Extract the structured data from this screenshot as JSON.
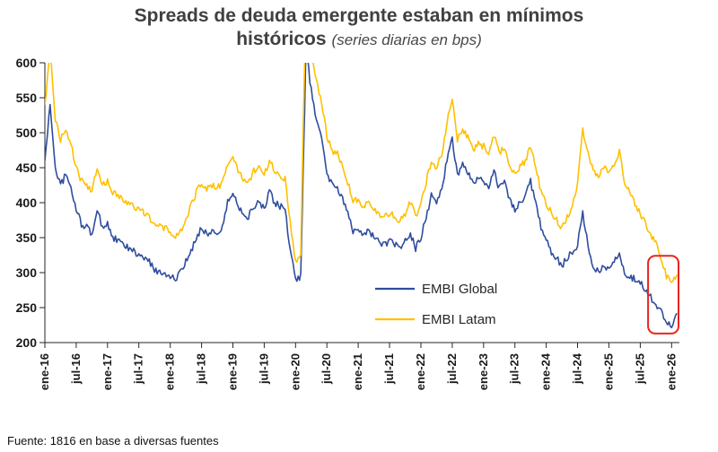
{
  "title": {
    "line1": "Spreads de deuda emergente estaban en mínimos",
    "line2_bold": "históricos",
    "line2_italic": "(series diarias en bps)"
  },
  "footer": {
    "source": "Fuente: 1816  en base a diversas fuentes"
  },
  "chart_data": {
    "type": "line",
    "title": "Spreads de deuda emergente estaban en mínimos históricos",
    "subtitle": "(series diarias en bps)",
    "xlabel": "",
    "ylabel": "",
    "unit": "bps",
    "grid": false,
    "legend_position": "inside-bottom-right",
    "ylim": [
      200,
      600
    ],
    "y_ticks": [
      200,
      250,
      300,
      350,
      400,
      450,
      500,
      550,
      600
    ],
    "x_tick_labels": [
      "ene-16",
      "jul-16",
      "ene-17",
      "jul-17",
      "ene-18",
      "jul-18",
      "ene-19",
      "jul-19",
      "ene-20",
      "jul-20",
      "ene-21",
      "jul-21",
      "ene-22",
      "jul-22",
      "ene-23",
      "jul-23",
      "ene-24",
      "jul-24",
      "ene-25",
      "jul-25",
      "ene-26"
    ],
    "x_tick_months": [
      0,
      6,
      12,
      18,
      24,
      30,
      36,
      42,
      48,
      54,
      60,
      66,
      72,
      78,
      84,
      90,
      96,
      102,
      108,
      114,
      120
    ],
    "x_note": "monthly approximations of daily series, index 0 = ene-16",
    "series": [
      {
        "name": "EMBI Global",
        "color": "#2f4d9e",
        "values": [
          460,
          540,
          450,
          425,
          440,
          420,
          390,
          370,
          365,
          355,
          390,
          365,
          370,
          350,
          345,
          340,
          335,
          330,
          325,
          320,
          315,
          305,
          300,
          300,
          295,
          290,
          300,
          315,
          330,
          350,
          365,
          355,
          360,
          355,
          365,
          400,
          415,
          395,
          385,
          380,
          395,
          400,
          390,
          415,
          400,
          395,
          390,
          330,
          290,
          295,
          620,
          560,
          520,
          490,
          445,
          425,
          420,
          405,
          385,
          360,
          365,
          355,
          360,
          350,
          345,
          340,
          345,
          340,
          335,
          345,
          355,
          335,
          350,
          380,
          410,
          400,
          420,
          460,
          490,
          440,
          455,
          445,
          425,
          435,
          430,
          420,
          445,
          420,
          430,
          405,
          390,
          400,
          410,
          430,
          400,
          365,
          350,
          330,
          320,
          310,
          320,
          330,
          340,
          385,
          340,
          310,
          300,
          310,
          305,
          315,
          330,
          300,
          295,
          290,
          285,
          275,
          265,
          255,
          245,
          232,
          224,
          242
        ]
      },
      {
        "name": "EMBI Latam",
        "color": "#FFC000",
        "values": [
          540,
          615,
          520,
          490,
          505,
          485,
          450,
          430,
          425,
          415,
          450,
          425,
          430,
          415,
          410,
          405,
          400,
          395,
          390,
          385,
          380,
          370,
          365,
          365,
          355,
          350,
          360,
          375,
          395,
          415,
          430,
          420,
          425,
          420,
          430,
          455,
          465,
          445,
          435,
          430,
          445,
          450,
          440,
          460,
          445,
          440,
          435,
          370,
          315,
          330,
          700,
          620,
          575,
          545,
          495,
          475,
          470,
          455,
          430,
          400,
          405,
          395,
          400,
          390,
          385,
          380,
          385,
          380,
          375,
          385,
          400,
          380,
          400,
          430,
          460,
          450,
          470,
          515,
          545,
          490,
          505,
          495,
          475,
          485,
          480,
          470,
          495,
          470,
          480,
          455,
          440,
          450,
          460,
          480,
          450,
          415,
          400,
          385,
          375,
          365,
          380,
          395,
          430,
          505,
          470,
          445,
          435,
          450,
          445,
          455,
          475,
          430,
          415,
          400,
          385,
          370,
          355,
          345,
          320,
          295,
          283,
          297
        ]
      }
    ],
    "annotation": {
      "shape": "rounded-rect",
      "color": "#e8251f",
      "x_month_range": [
        115.5,
        122
      ],
      "y_value_range": [
        213,
        324
      ]
    }
  }
}
